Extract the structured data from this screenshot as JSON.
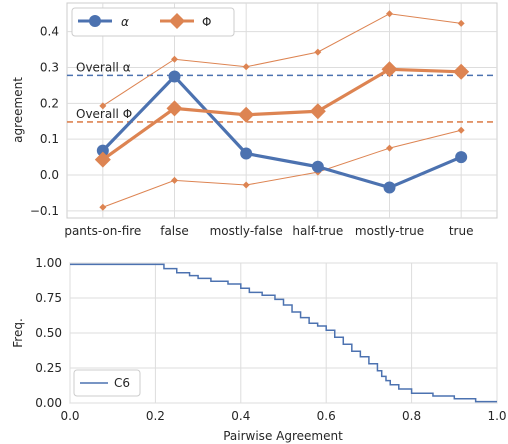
{
  "chart_data": [
    {
      "type": "line",
      "xlabel": "",
      "ylabel": "agreement",
      "categories": [
        "pants-on-fire",
        "false",
        "mostly-false",
        "half-true",
        "mostly-true",
        "true"
      ],
      "ylim": [
        -0.12,
        0.48
      ],
      "yticks": [
        -0.1,
        0.0,
        0.1,
        0.2,
        0.3,
        0.4
      ],
      "ytick_labels": [
        "−0.1",
        "0.0",
        "0.1",
        "0.2",
        "0.3",
        "0.4"
      ],
      "grid": true,
      "legend": "top-left",
      "series": [
        {
          "name": "α",
          "color": "#4c72b0",
          "marker": "circle",
          "values": [
            0.068,
            0.275,
            0.06,
            0.023,
            -0.035,
            0.05
          ]
        },
        {
          "name": "Φ",
          "color": "#dd8452",
          "marker": "diamond",
          "values": [
            0.043,
            0.186,
            0.168,
            0.178,
            0.295,
            0.288
          ]
        }
      ],
      "bounds": [
        {
          "color": "#dd8452",
          "values": [
            0.193,
            0.323,
            0.302,
            0.343,
            0.45,
            0.423
          ]
        },
        {
          "color": "#dd8452",
          "values": [
            -0.09,
            -0.015,
            -0.028,
            0.008,
            0.075,
            0.125
          ]
        }
      ],
      "reference_lines": [
        {
          "label": "Overall  α",
          "value": 0.278,
          "color": "#4c72b0"
        },
        {
          "label": "Overall  Φ",
          "value": 0.148,
          "color": "#dd8452"
        }
      ]
    },
    {
      "type": "line",
      "step": true,
      "xlabel": "Pairwise Agreement",
      "ylabel": "Freq.",
      "xlim": [
        0.0,
        1.0
      ],
      "ylim": [
        0.0,
        1.0
      ],
      "xticks": [
        0.0,
        0.2,
        0.4,
        0.6,
        0.8,
        1.0
      ],
      "xtick_labels": [
        "0.0",
        "0.2",
        "0.4",
        "0.6",
        "0.8",
        "1.0"
      ],
      "yticks": [
        0.0,
        0.25,
        0.5,
        0.75,
        1.0
      ],
      "ytick_labels": [
        "0.00",
        "0.25",
        "0.50",
        "0.75",
        "1.00"
      ],
      "grid": true,
      "legend": "bottom-left",
      "series": [
        {
          "name": "C6",
          "color": "#4c72b0",
          "x": [
            0.0,
            0.2,
            0.22,
            0.25,
            0.28,
            0.3,
            0.33,
            0.37,
            0.4,
            0.42,
            0.45,
            0.48,
            0.5,
            0.52,
            0.54,
            0.56,
            0.58,
            0.6,
            0.62,
            0.64,
            0.66,
            0.68,
            0.7,
            0.72,
            0.73,
            0.74,
            0.75,
            0.77,
            0.8,
            0.85,
            0.9,
            0.95,
            1.0
          ],
          "y": [
            0.99,
            0.99,
            0.96,
            0.93,
            0.91,
            0.89,
            0.87,
            0.85,
            0.82,
            0.79,
            0.77,
            0.74,
            0.7,
            0.65,
            0.61,
            0.57,
            0.55,
            0.52,
            0.47,
            0.42,
            0.37,
            0.33,
            0.28,
            0.23,
            0.19,
            0.16,
            0.13,
            0.1,
            0.07,
            0.05,
            0.03,
            0.01,
            0.01
          ]
        }
      ]
    }
  ]
}
